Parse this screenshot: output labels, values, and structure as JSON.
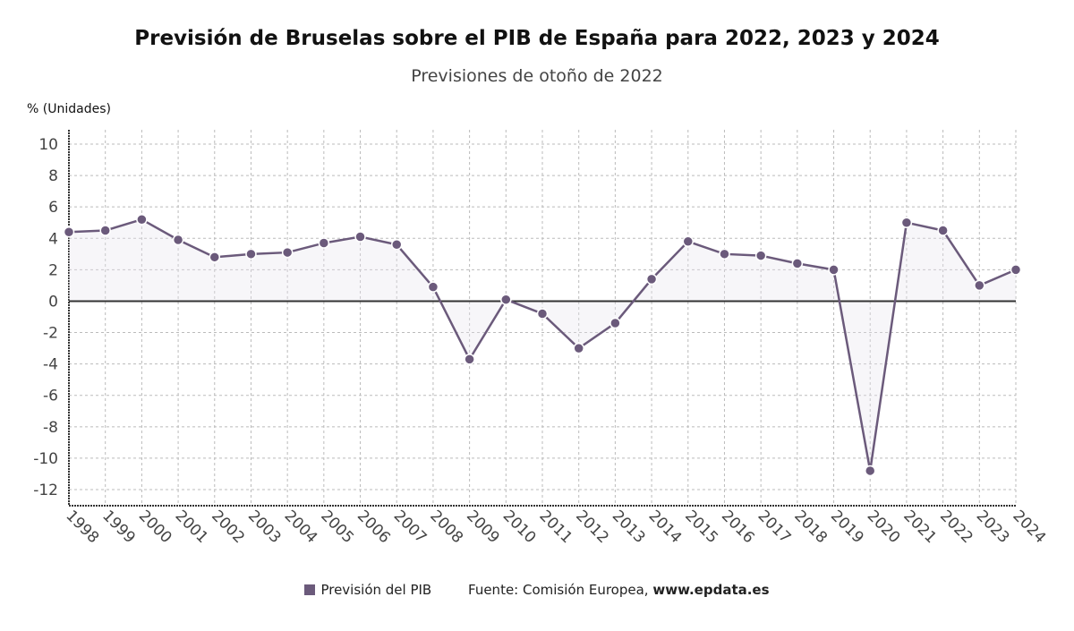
{
  "chart_data": {
    "type": "line",
    "title": "Previsión de Bruselas sobre el PIB de España para 2022, 2023 y 2024",
    "subtitle": "Previsiones de otoño de 2022",
    "ylabel": "% (Unidades)",
    "xlabel": "",
    "ylim": [
      -13,
      11
    ],
    "yticks": [
      10,
      8,
      6,
      4,
      2,
      0,
      -2,
      -4,
      -6,
      -8,
      -10,
      -12
    ],
    "grid": true,
    "legend_position": "bottom",
    "x": [
      "1998",
      "1999",
      "2000",
      "2001",
      "2002",
      "2003",
      "2004",
      "2005",
      "2006",
      "2007",
      "2008",
      "2009",
      "2010",
      "2011",
      "2012",
      "2013",
      "2014",
      "2015",
      "2016",
      "2017",
      "2018",
      "2019",
      "2020",
      "2021",
      "2022",
      "2023",
      "2024"
    ],
    "series": [
      {
        "name": "Previsión del PIB",
        "color": "#6b5a7b",
        "values": [
          4.4,
          4.5,
          5.2,
          3.9,
          2.8,
          3.0,
          3.1,
          3.7,
          4.1,
          3.6,
          0.9,
          -3.7,
          0.1,
          -0.8,
          -3.0,
          -1.4,
          1.4,
          3.8,
          3.0,
          2.9,
          2.4,
          2.0,
          -10.8,
          5.0,
          4.5,
          1.0,
          2.0
        ]
      }
    ]
  },
  "footer": {
    "source_label": "Fuente: Comisión Europea,",
    "source_site": "www.epdata.es"
  }
}
